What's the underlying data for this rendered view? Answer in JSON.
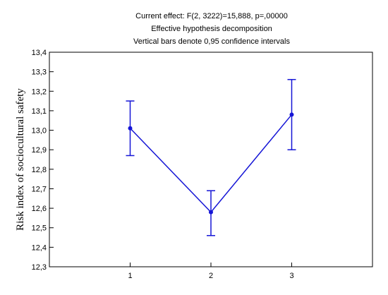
{
  "chart_data": {
    "type": "line",
    "title_lines": [
      "Current effect: F(2, 3222)=15,888, p=,00000",
      "Effective hypothesis decomposition",
      "Vertical bars denote 0,95 confidence intervals"
    ],
    "xlabel": "",
    "ylabel": "Risk index of sociocultural safety",
    "categories": [
      "1",
      "2",
      "3"
    ],
    "series": [
      {
        "values": [
          13.01,
          12.58,
          13.08
        ],
        "ci_lower": [
          12.87,
          12.46,
          12.9
        ],
        "ci_upper": [
          13.15,
          12.69,
          13.26
        ]
      }
    ],
    "ylim": [
      12.3,
      13.4
    ],
    "yticks": [
      "12,3",
      "12,4",
      "12,5",
      "12,6",
      "12,7",
      "12,8",
      "12,9",
      "13,0",
      "13,1",
      "13,2",
      "13,3",
      "13,4"
    ],
    "xlim": [
      0,
      4
    ],
    "grid": false,
    "line_color": "#1515d6"
  }
}
